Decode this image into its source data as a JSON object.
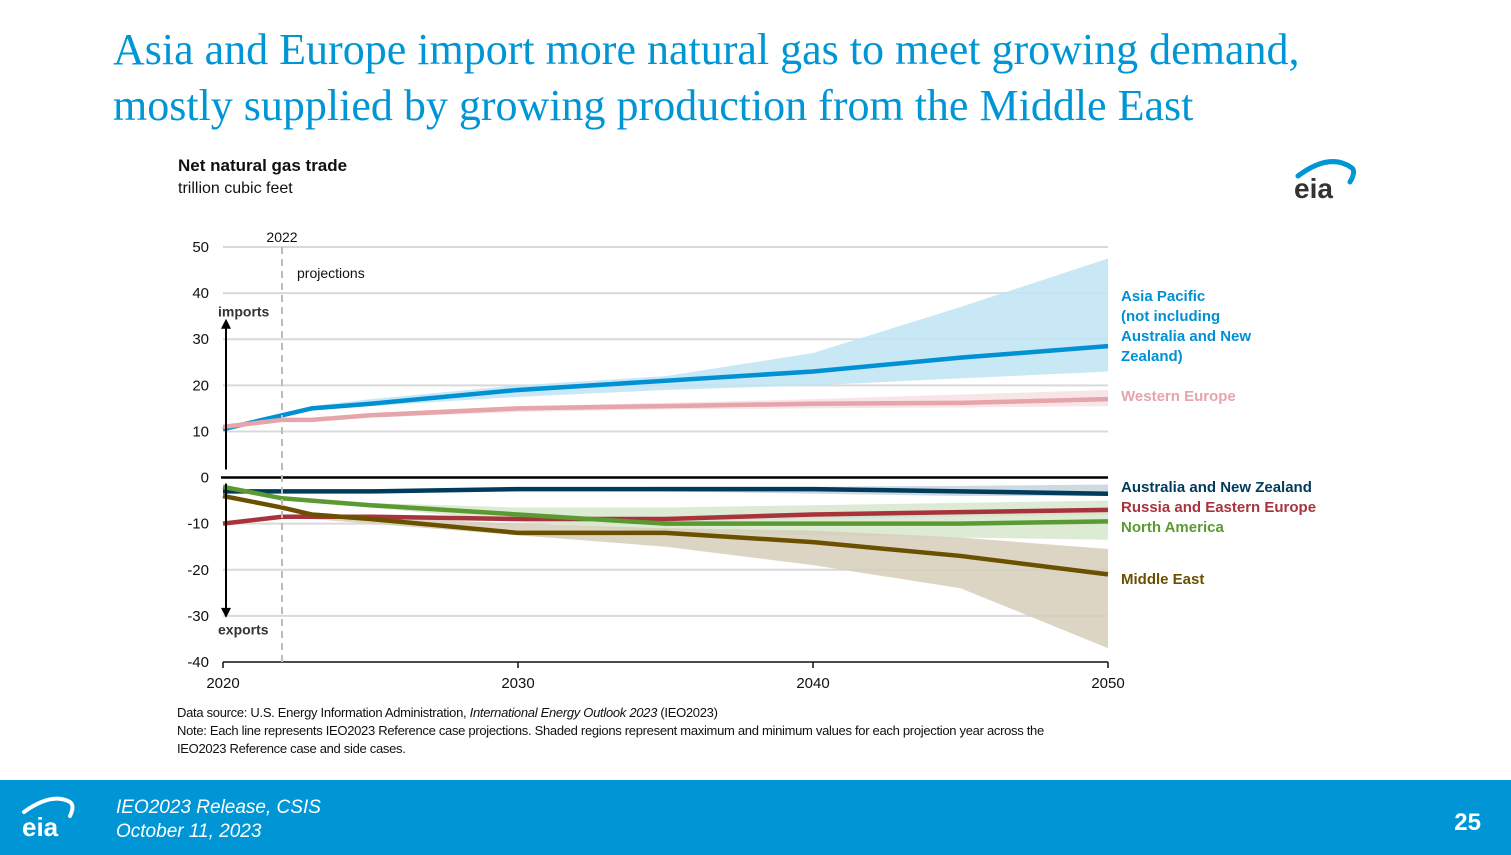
{
  "slide": {
    "title_line1": "Asia and Europe import more natural gas to meet growing demand,",
    "title_line2": "mostly supplied by growing production from the Middle East"
  },
  "logo": {
    "text": "eia",
    "icon": "eia-logo-icon"
  },
  "chart_data": {
    "type": "line",
    "title": "Net natural gas trade",
    "subtitle": "trillion cubic feet",
    "xlabel": "",
    "ylabel": "",
    "xlim": [
      2020,
      2050
    ],
    "ylim": [
      -40,
      50
    ],
    "x_ticks": [
      2020,
      2030,
      2040,
      2050
    ],
    "y_ticks": [
      50,
      40,
      30,
      20,
      10,
      0,
      -10,
      -20,
      -30,
      -40
    ],
    "grid": true,
    "legend": "right-end labels",
    "annotations": {
      "history_marker_year": 2022,
      "history_marker_label": "2022",
      "projections_label": "projections",
      "imports_label": "imports",
      "exports_label": "exports"
    },
    "x": [
      2020,
      2022,
      2023,
      2025,
      2030,
      2035,
      2040,
      2045,
      2050
    ],
    "series": [
      {
        "name": "Asia Pacific (not including Australia and New Zealand)",
        "label_lines": [
          "Asia Pacific",
          "(not including",
          "Australia and New",
          "Zealand)"
        ],
        "color": "#0090d4",
        "band_color": "#c0e4f4",
        "values": [
          10.5,
          13.5,
          15,
          16,
          19,
          21,
          23,
          26,
          28.5
        ],
        "band_max": [
          10.5,
          13.5,
          15.5,
          17,
          20,
          22,
          27,
          37,
          47.5
        ],
        "band_min": [
          10.5,
          13.5,
          14.5,
          15.5,
          17.5,
          19,
          20,
          21.5,
          23
        ]
      },
      {
        "name": "Western Europe",
        "label_lines": [
          "Western Europe"
        ],
        "color": "#e6a4ab",
        "band_color": "#f7e1e3",
        "values": [
          11,
          12.5,
          12.5,
          13.5,
          15,
          15.5,
          16,
          16.2,
          17
        ],
        "band_max": [
          11,
          12.5,
          12.8,
          14,
          15.5,
          16.2,
          17,
          18,
          19
        ],
        "band_min": [
          11,
          12.5,
          12.2,
          13,
          14.2,
          14.8,
          15,
          15.2,
          15.5
        ]
      },
      {
        "name": "Australia and New Zealand",
        "label_lines": [
          "Australia and New Zealand"
        ],
        "color": "#003b5c",
        "band_color": "#c5d3dc",
        "values": [
          -3,
          -3,
          -3,
          -3,
          -2.5,
          -2.5,
          -2.5,
          -3,
          -3.5
        ],
        "band_max": [
          -3,
          -3,
          -3,
          -3,
          -2.5,
          -2,
          -2,
          -1.8,
          -1.5
        ],
        "band_min": [
          -3,
          -3,
          -3,
          -3,
          -2.8,
          -3,
          -3.5,
          -4,
          -4
        ]
      },
      {
        "name": "Russia and Eastern Europe",
        "label_lines": [
          "Russia and Eastern Europe"
        ],
        "color": "#a8333d",
        "band_color": "#d6cab8",
        "values": [
          -10,
          -8.5,
          -8.5,
          -8.5,
          -9,
          -9,
          -8,
          -7.5,
          -7
        ],
        "band_max": [
          -10,
          -8.5,
          -8.5,
          -8.5,
          -8.5,
          -8.5,
          -7.5,
          -7,
          -6.5
        ],
        "band_min": [
          -10,
          -8.5,
          -8.8,
          -9,
          -9.5,
          -9.5,
          -9,
          -8.5,
          -8
        ]
      },
      {
        "name": "North America",
        "label_lines": [
          "North America"
        ],
        "color": "#5b9a32",
        "band_color": "#d7e6cd",
        "values": [
          -2,
          -4.5,
          -5,
          -6,
          -8,
          -10,
          -10,
          -10,
          -9.5
        ],
        "band_max": [
          -2,
          -4.5,
          -4.8,
          -5.5,
          -6.5,
          -6.5,
          -6,
          -5.5,
          -5
        ],
        "band_min": [
          -2,
          -4.5,
          -5.2,
          -6.5,
          -9.5,
          -12,
          -12.5,
          -13,
          -13.5
        ]
      },
      {
        "name": "Middle East",
        "label_lines": [
          "Middle East"
        ],
        "color": "#6b5000",
        "band_color": "#d6ceb8",
        "values": [
          -4,
          -6.5,
          -8,
          -9,
          -12,
          -12,
          -14,
          -17,
          -21
        ],
        "band_max": [
          -4,
          -6.5,
          -7.5,
          -8.5,
          -10,
          -11,
          -11.5,
          -13,
          -15.5
        ],
        "band_min": [
          -4,
          -6.5,
          -9,
          -10,
          -12.5,
          -15,
          -19,
          -24,
          -37
        ]
      }
    ]
  },
  "footnotes": {
    "source_prefix": "Data source: U.S. Energy Information Administration, ",
    "source_italic": "International Energy Outlook 2023",
    "source_suffix": " (IEO2023)",
    "note_line1": "Note: Each line represents IEO2023 Reference case projections. Shaded regions represent maximum and minimum values for each projection year across the",
    "note_line2": "IEO2023 Reference case and side cases."
  },
  "footer": {
    "line1": "IEO2023 Release, CSIS",
    "line2": "October 11, 2023",
    "page_number": "25",
    "background": "#0096d6"
  }
}
